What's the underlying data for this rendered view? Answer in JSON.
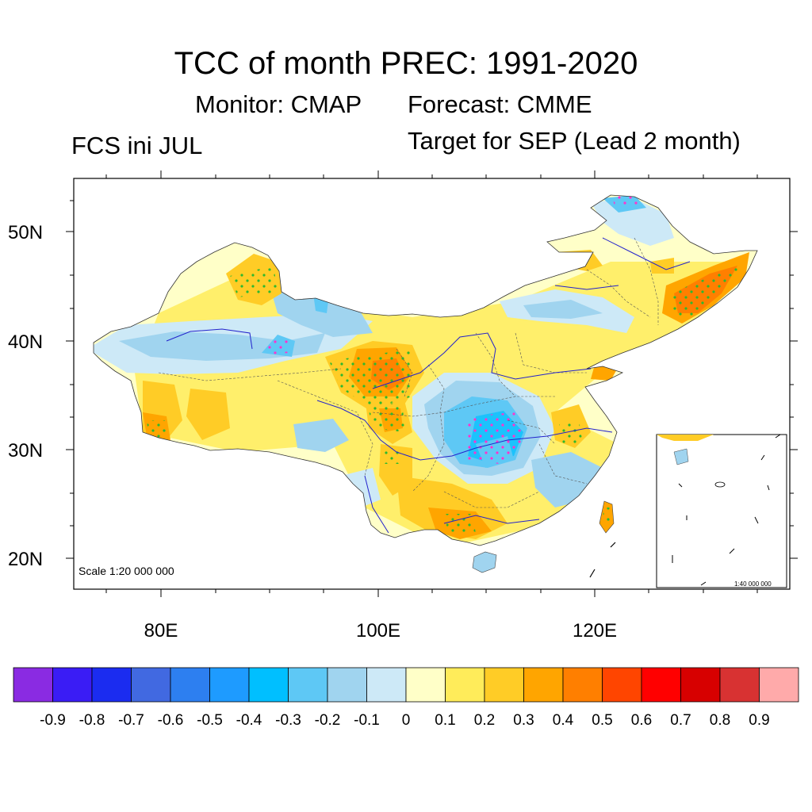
{
  "title": "TCC of month PREC: 1991-2020",
  "monitor_label": "Monitor: CMAP",
  "forecast_label": "Forecast: CMME",
  "init_label": "FCS ini JUL",
  "target_label": "Target for SEP (Lead 2 month)",
  "map": {
    "scale_main": "Scale 1:20 000 000",
    "scale_inset": "1:40 000 000",
    "lat_ticks": [
      "50N",
      "40N",
      "30N",
      "20N"
    ],
    "lon_ticks": [
      "80E",
      "100E",
      "120E"
    ]
  },
  "colorbar": {
    "colors": [
      "#8a2be2",
      "#3a1cf5",
      "#1b2cf0",
      "#4169e1",
      "#2d7ff0",
      "#1e9bff",
      "#00bfff",
      "#5ec8f5",
      "#a0d4ef",
      "#cde9f7",
      "#ffffc8",
      "#ffec5a",
      "#ffcc26",
      "#ffa500",
      "#ff7f00",
      "#ff4500",
      "#ff0000",
      "#d70000",
      "#d83232",
      "#ffaaaa"
    ],
    "labels": [
      "-0.9",
      "-0.8",
      "-0.7",
      "-0.6",
      "-0.5",
      "-0.4",
      "-0.3",
      "-0.2",
      "-0.1",
      "0",
      "0.1",
      "0.2",
      "0.3",
      "0.4",
      "0.5",
      "0.6",
      "0.7",
      "0.8",
      "0.9"
    ]
  }
}
